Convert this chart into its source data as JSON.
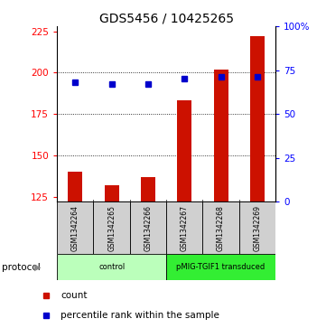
{
  "title": "GDS5456 / 10425265",
  "samples": [
    "GSM1342264",
    "GSM1342265",
    "GSM1342266",
    "GSM1342267",
    "GSM1342268",
    "GSM1342269"
  ],
  "counts": [
    140,
    132,
    137,
    183,
    202,
    222
  ],
  "percentile_ranks": [
    68,
    67,
    67,
    70,
    71,
    71
  ],
  "ylim_left": [
    122,
    228
  ],
  "ylim_right": [
    0,
    100
  ],
  "yticks_left": [
    125,
    150,
    175,
    200,
    225
  ],
  "yticks_right": [
    0,
    25,
    50,
    75,
    100
  ],
  "ytick_labels_right": [
    "0",
    "25",
    "50",
    "75",
    "100%"
  ],
  "bar_color": "#cc1100",
  "dot_color": "#0000cc",
  "protocol_groups": [
    {
      "label": "control",
      "samples": [
        0,
        1,
        2
      ],
      "color": "#bbffbb"
    },
    {
      "label": "pMIG-TGIF1 transduced",
      "samples": [
        3,
        4,
        5
      ],
      "color": "#33ee33"
    }
  ],
  "protocol_label": "protocol",
  "legend_count_label": "count",
  "legend_pct_label": "percentile rank within the sample",
  "title_fontsize": 10,
  "tick_fontsize": 7.5,
  "bar_width": 0.4,
  "baseline": 122,
  "grid_yticks": [
    150,
    175,
    200
  ]
}
